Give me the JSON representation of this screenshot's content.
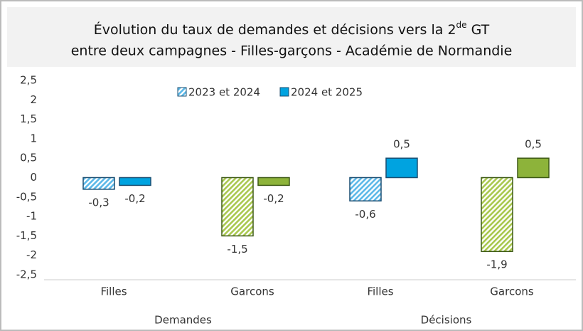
{
  "chart_data": {
    "type": "bar",
    "title": {
      "main": "Évolution du taux de demandes et décisions vers la 2",
      "sup": "de",
      "end": " GT",
      "line2": "entre deux campagnes - Filles-garçons - Académie de Normandie"
    },
    "groups": [
      "Demandes",
      "Décisions"
    ],
    "categories": [
      "Filles",
      "Garcons",
      "Filles",
      "Garcons"
    ],
    "series": [
      {
        "name": "2023 et 2024",
        "color": "#5bb8e8",
        "colors": [
          "#5bb8e8",
          "#a9c84e",
          "#5bb8e8",
          "#a9c84e"
        ],
        "hatched": true,
        "values": [
          -0.3,
          -1.5,
          -0.6,
          -1.9
        ],
        "value_labels": [
          "-0,3",
          "-1,5",
          "-0,6",
          "-1,9"
        ]
      },
      {
        "name": "2024 et 2025",
        "color": "#00a3e0",
        "colors": [
          "#00a3e0",
          "#8db33a",
          "#00a3e0",
          "#8db33a"
        ],
        "hatched": false,
        "values": [
          -0.2,
          -0.2,
          0.5,
          0.5
        ],
        "value_labels": [
          "-0,2",
          "-0,2",
          "0,5",
          "0,5"
        ]
      }
    ],
    "ylim": [
      -2.5,
      2.5
    ],
    "yticks": [
      {
        "value": -2.5,
        "label": "-2,5"
      },
      -2,
      {
        "value": -1.5,
        "label": "-1,5"
      },
      -1,
      {
        "value": -0.5,
        "label": "-0,5"
      },
      0,
      {
        "value": 0.5,
        "label": "0,5"
      },
      1,
      {
        "value": 1.5,
        "label": "1,5"
      },
      2,
      {
        "value": 2.5,
        "label": "2,5"
      }
    ],
    "grid": false
  }
}
